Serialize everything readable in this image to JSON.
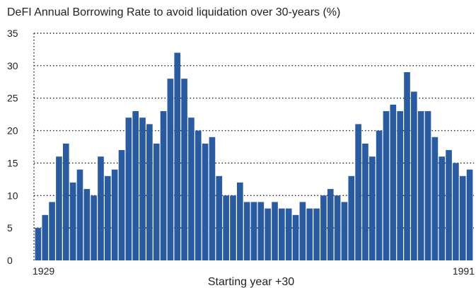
{
  "chart_data": {
    "type": "bar",
    "title": "DeFI Annual Borrowing Rate to avoid liquidation over 30-years (%)",
    "xlabel": "Starting year +30",
    "ylabel": "",
    "ylim": [
      0,
      35
    ],
    "yticks": [
      0,
      5,
      10,
      15,
      20,
      25,
      30,
      35
    ],
    "xtick_labels": [
      "1929",
      "1991"
    ],
    "grid": "horizontal dotted",
    "bar_color": "#2a5aa0",
    "categories": [
      "1929",
      "1930",
      "1931",
      "1932",
      "1933",
      "1934",
      "1935",
      "1936",
      "1937",
      "1938",
      "1939",
      "1940",
      "1941",
      "1942",
      "1943",
      "1944",
      "1945",
      "1946",
      "1947",
      "1948",
      "1949",
      "1950",
      "1951",
      "1952",
      "1953",
      "1954",
      "1955",
      "1956",
      "1957",
      "1958",
      "1959",
      "1960",
      "1961",
      "1962",
      "1963",
      "1964",
      "1965",
      "1966",
      "1967",
      "1968",
      "1969",
      "1970",
      "1971",
      "1972",
      "1973",
      "1974",
      "1975",
      "1976",
      "1977",
      "1978",
      "1979",
      "1980",
      "1981",
      "1982",
      "1983",
      "1984",
      "1985",
      "1986",
      "1987",
      "1988",
      "1989",
      "1990",
      "1991"
    ],
    "values": [
      5,
      7,
      9,
      16,
      18,
      12,
      14,
      11,
      10,
      16,
      13,
      14,
      17,
      22,
      23,
      22,
      21,
      18,
      23,
      28,
      32,
      28,
      22,
      20,
      18,
      19,
      13,
      10,
      10,
      12,
      9,
      9,
      9,
      8,
      9,
      8,
      8,
      7,
      9,
      8,
      8,
      10,
      11,
      10,
      9,
      13,
      21,
      18,
      16,
      20,
      23,
      24,
      23,
      29,
      26,
      23,
      23,
      19,
      16,
      17,
      15,
      13,
      14
    ]
  }
}
